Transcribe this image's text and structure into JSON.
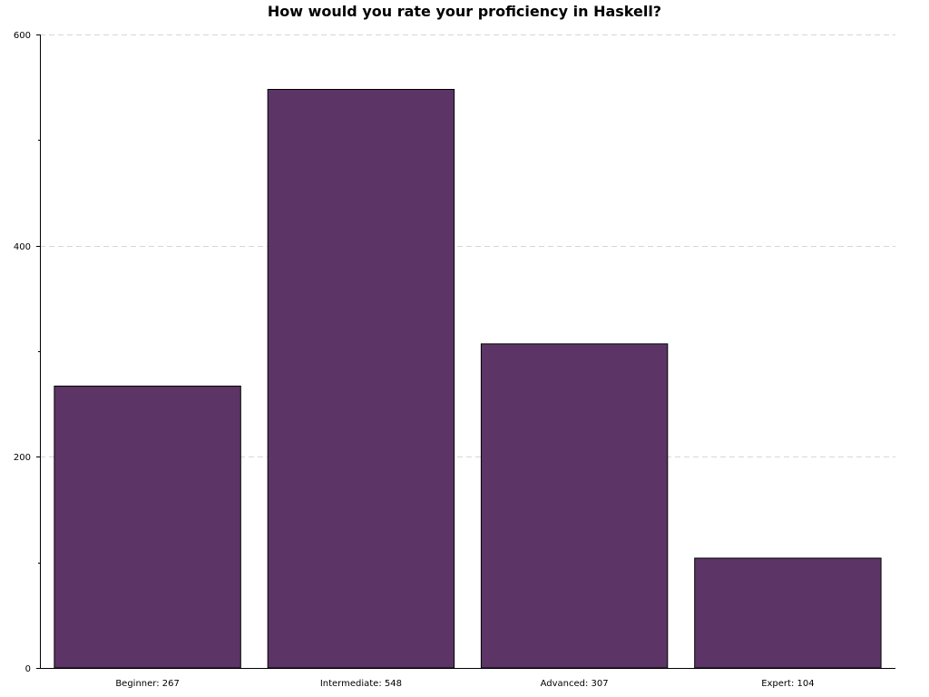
{
  "chart_data": {
    "type": "bar",
    "title": "How would you rate your proficiency in Haskell?",
    "categories": [
      "Beginner",
      "Intermediate",
      "Advanced",
      "Expert"
    ],
    "values": [
      267,
      548,
      307,
      104
    ],
    "category_labels": [
      "Beginner: 267",
      "Intermediate: 548",
      "Advanced: 307",
      "Expert: 104"
    ],
    "ylim": [
      0,
      600
    ],
    "yticks": [
      0,
      200,
      400,
      600
    ],
    "grid": true,
    "bar_color": "#5c3566"
  }
}
